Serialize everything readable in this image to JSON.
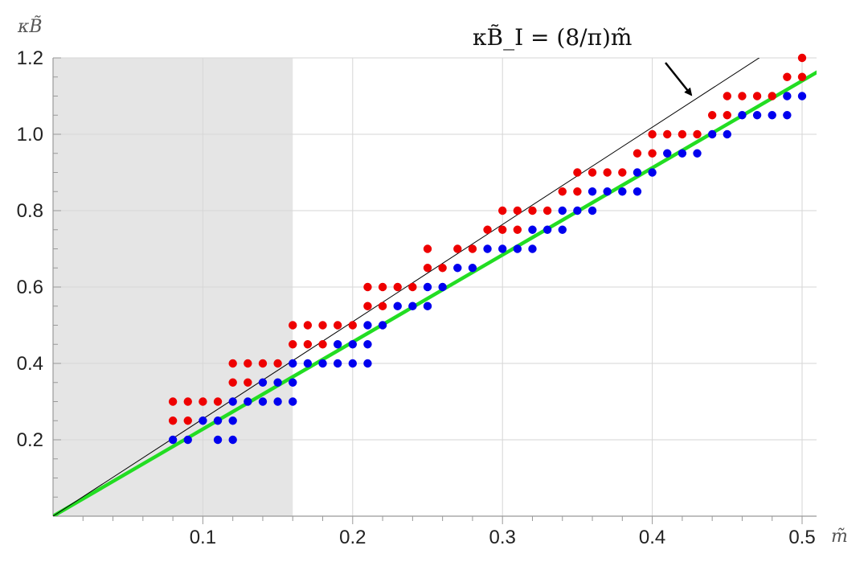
{
  "chart_data": {
    "type": "scatter",
    "title": "",
    "xlabel": "m̃",
    "ylabel": "κB̃",
    "xlim": [
      0,
      0.5
    ],
    "ylim": [
      0,
      1.2
    ],
    "x_ticks": [
      0.1,
      0.2,
      0.3,
      0.4,
      0.5
    ],
    "x_tick_labels": [
      "0.1",
      "0.2",
      "0.3",
      "0.4",
      "0.5"
    ],
    "y_ticks": [
      0.2,
      0.4,
      0.6,
      0.8,
      1.0,
      1.2
    ],
    "y_tick_labels": [
      "0.2",
      "0.4",
      "0.6",
      "0.8",
      "1.0",
      "1.2"
    ],
    "grid": true,
    "shaded_region": {
      "x": [
        0,
        0.16
      ],
      "color": "#e5e5e5"
    },
    "annotation": {
      "text": "κB̃_I = (8/π)m̃",
      "points_to": [
        0.43,
        1.095
      ]
    },
    "reference_line": {
      "slope": 2.546,
      "color": "#000000"
    },
    "fit_line": {
      "slope": 2.28,
      "color": "#22dd22"
    },
    "series": [
      {
        "color": "#ee0000",
        "points": [
          [
            0.08,
            0.3
          ],
          [
            0.08,
            0.25
          ],
          [
            0.09,
            0.3
          ],
          [
            0.09,
            0.25
          ],
          [
            0.1,
            0.3
          ],
          [
            0.11,
            0.3
          ],
          [
            0.12,
            0.4
          ],
          [
            0.12,
            0.35
          ],
          [
            0.13,
            0.4
          ],
          [
            0.13,
            0.35
          ],
          [
            0.14,
            0.4
          ],
          [
            0.15,
            0.4
          ],
          [
            0.16,
            0.5
          ],
          [
            0.16,
            0.45
          ],
          [
            0.17,
            0.5
          ],
          [
            0.17,
            0.45
          ],
          [
            0.18,
            0.5
          ],
          [
            0.18,
            0.45
          ],
          [
            0.19,
            0.5
          ],
          [
            0.2,
            0.5
          ],
          [
            0.21,
            0.6
          ],
          [
            0.21,
            0.55
          ],
          [
            0.22,
            0.6
          ],
          [
            0.22,
            0.55
          ],
          [
            0.23,
            0.6
          ],
          [
            0.24,
            0.6
          ],
          [
            0.25,
            0.7
          ],
          [
            0.25,
            0.65
          ],
          [
            0.26,
            0.65
          ],
          [
            0.27,
            0.7
          ],
          [
            0.28,
            0.7
          ],
          [
            0.29,
            0.75
          ],
          [
            0.3,
            0.8
          ],
          [
            0.3,
            0.75
          ],
          [
            0.31,
            0.8
          ],
          [
            0.31,
            0.75
          ],
          [
            0.32,
            0.8
          ],
          [
            0.33,
            0.8
          ],
          [
            0.34,
            0.85
          ],
          [
            0.35,
            0.9
          ],
          [
            0.35,
            0.85
          ],
          [
            0.36,
            0.9
          ],
          [
            0.37,
            0.9
          ],
          [
            0.38,
            0.9
          ],
          [
            0.39,
            0.95
          ],
          [
            0.4,
            1.0
          ],
          [
            0.4,
            0.95
          ],
          [
            0.41,
            1.0
          ],
          [
            0.42,
            1.0
          ],
          [
            0.43,
            1.0
          ],
          [
            0.44,
            1.05
          ],
          [
            0.45,
            1.1
          ],
          [
            0.45,
            1.05
          ],
          [
            0.46,
            1.1
          ],
          [
            0.47,
            1.1
          ],
          [
            0.48,
            1.1
          ],
          [
            0.49,
            1.15
          ],
          [
            0.5,
            1.2
          ],
          [
            0.5,
            1.15
          ]
        ]
      },
      {
        "color": "#0000ee",
        "points": [
          [
            0.08,
            0.2
          ],
          [
            0.09,
            0.2
          ],
          [
            0.1,
            0.25
          ],
          [
            0.11,
            0.25
          ],
          [
            0.11,
            0.2
          ],
          [
            0.12,
            0.3
          ],
          [
            0.12,
            0.25
          ],
          [
            0.12,
            0.2
          ],
          [
            0.13,
            0.3
          ],
          [
            0.14,
            0.35
          ],
          [
            0.14,
            0.3
          ],
          [
            0.15,
            0.35
          ],
          [
            0.15,
            0.3
          ],
          [
            0.16,
            0.4
          ],
          [
            0.16,
            0.35
          ],
          [
            0.16,
            0.3
          ],
          [
            0.17,
            0.4
          ],
          [
            0.18,
            0.4
          ],
          [
            0.19,
            0.45
          ],
          [
            0.19,
            0.4
          ],
          [
            0.2,
            0.45
          ],
          [
            0.2,
            0.4
          ],
          [
            0.21,
            0.5
          ],
          [
            0.21,
            0.45
          ],
          [
            0.21,
            0.4
          ],
          [
            0.22,
            0.5
          ],
          [
            0.23,
            0.55
          ],
          [
            0.24,
            0.55
          ],
          [
            0.25,
            0.6
          ],
          [
            0.25,
            0.55
          ],
          [
            0.26,
            0.6
          ],
          [
            0.27,
            0.65
          ],
          [
            0.28,
            0.65
          ],
          [
            0.29,
            0.7
          ],
          [
            0.3,
            0.7
          ],
          [
            0.31,
            0.7
          ],
          [
            0.32,
            0.75
          ],
          [
            0.32,
            0.7
          ],
          [
            0.33,
            0.75
          ],
          [
            0.34,
            0.8
          ],
          [
            0.34,
            0.75
          ],
          [
            0.35,
            0.8
          ],
          [
            0.36,
            0.85
          ],
          [
            0.36,
            0.8
          ],
          [
            0.37,
            0.85
          ],
          [
            0.38,
            0.85
          ],
          [
            0.39,
            0.9
          ],
          [
            0.39,
            0.85
          ],
          [
            0.4,
            0.9
          ],
          [
            0.41,
            0.95
          ],
          [
            0.42,
            0.95
          ],
          [
            0.43,
            0.95
          ],
          [
            0.44,
            1.0
          ],
          [
            0.45,
            1.0
          ],
          [
            0.46,
            1.05
          ],
          [
            0.47,
            1.05
          ],
          [
            0.48,
            1.05
          ],
          [
            0.49,
            1.1
          ],
          [
            0.49,
            1.05
          ],
          [
            0.5,
            1.1
          ]
        ]
      }
    ]
  }
}
